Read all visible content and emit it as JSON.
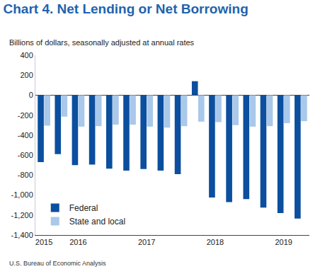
{
  "chart_data": {
    "type": "bar",
    "title": "Chart 4. Net Lending or Net Borrowing",
    "subtitle": "Billions of dollars, seasonally adjusted at annual rates",
    "source": "U.S. Bureau of Economic Analysis",
    "categories": [
      "2015",
      null,
      "2016",
      null,
      null,
      null,
      "2017",
      null,
      null,
      null,
      "2018",
      null,
      null,
      null,
      "2019",
      null
    ],
    "series": [
      {
        "name": "Federal",
        "color": "#0b4f9e",
        "values": [
          -670,
          -590,
          -700,
          -695,
          -735,
          -755,
          -740,
          -755,
          -790,
          140,
          -1025,
          -1070,
          -1040,
          -1125,
          -1180,
          -1235
        ]
      },
      {
        "name": "State and local",
        "color": "#a9c8ea",
        "values": [
          -305,
          -215,
          -315,
          -310,
          -295,
          -295,
          -315,
          -325,
          -310,
          -265,
          -270,
          -300,
          -315,
          -310,
          -280,
          -260
        ]
      }
    ],
    "ylim": [
      -1400,
      400
    ],
    "yticks": [
      400,
      200,
      0,
      -200,
      -400,
      -600,
      -800,
      {
        "value": -1000,
        "label": "-1,000"
      },
      {
        "value": -1200,
        "label": "-1,200"
      },
      {
        "value": -1400,
        "label": "-1,400"
      }
    ],
    "grid": false,
    "legend": "bottom left"
  }
}
